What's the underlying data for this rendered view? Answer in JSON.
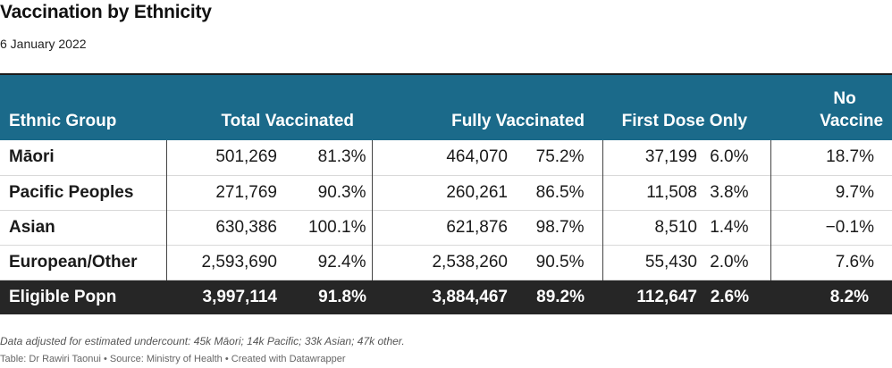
{
  "title": "Vaccination by Ethnicity",
  "subtitle": "6 January 2022",
  "chart_data": {
    "type": "table",
    "columns": {
      "group": "Ethnic Group",
      "total": "Total Vaccinated",
      "fully": "Fully Vaccinated",
      "first": "First Dose Only",
      "no_line1": "No",
      "no_line2": "Vaccine"
    },
    "rows": [
      {
        "group": "Māori",
        "total_n": "501,269",
        "total_p": "81.3%",
        "fully_n": "464,070",
        "fully_p": "75.2%",
        "first_n": "37,199",
        "first_p": "6.0%",
        "no": "18.7%"
      },
      {
        "group": "Pacific Peoples",
        "total_n": "271,769",
        "total_p": "90.3%",
        "fully_n": "260,261",
        "fully_p": "86.5%",
        "first_n": "11,508",
        "first_p": "3.8%",
        "no": "9.7%"
      },
      {
        "group": "Asian",
        "total_n": "630,386",
        "total_p": "100.1%",
        "fully_n": "621,876",
        "fully_p": "98.7%",
        "first_n": "8,510",
        "first_p": "1.4%",
        "no": "−0.1%"
      },
      {
        "group": "European/Other",
        "total_n": "2,593,690",
        "total_p": "92.4%",
        "fully_n": "2,538,260",
        "fully_p": "90.5%",
        "first_n": "55,430",
        "first_p": "2.0%",
        "no": "7.6%"
      }
    ],
    "total_row": {
      "group": "Eligible Popn",
      "total_n": "3,997,114",
      "total_p": "91.8%",
      "fully_n": "3,884,467",
      "fully_p": "89.2%",
      "first_n": "112,647",
      "first_p": "2.6%",
      "no": "8.2%"
    }
  },
  "footnote": "Data adjusted for estimated undercount: 45k Māori; 14k Pacific; 33k Asian; 47k other.",
  "source": "Table: Dr Rawiri Taonui • Source: Ministry of Health • Created with Datawrapper",
  "colors": {
    "header": "#1b6a8a",
    "total_row": "#262626"
  }
}
